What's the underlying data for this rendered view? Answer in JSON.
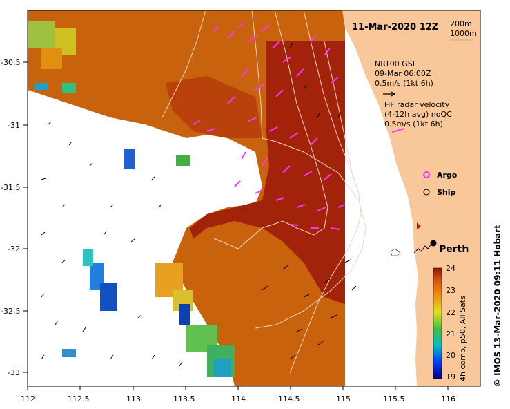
{
  "title": "11-Mar-2020 12Z",
  "depth_labels": [
    "200m",
    "1000m"
  ],
  "legend": {
    "nrt_title": "NRT00 GSL",
    "nrt_date": "09-Mar 06:00Z",
    "nrt_scale": "0.5m/s (1kt 6h)",
    "hf_title": "HF radar velocity",
    "hf_subtitle": "(4-12h avg) noQC",
    "hf_scale": "0.5m/s (1kt 6h)",
    "argo_label": "Argo",
    "ship_label": "Ship"
  },
  "city": "Perth",
  "colorbar": {
    "ticks": [
      "24",
      "23",
      "22",
      "21",
      "20",
      "19"
    ],
    "label": "4h comp, p50, All Sats"
  },
  "credit": "© IMOS 13-Mar-2020 09:11 Hobart",
  "axes": {
    "x_ticks": [
      "112",
      "112.5",
      "113",
      "113.5",
      "114",
      "114.5",
      "115",
      "115.5",
      "116"
    ],
    "y_ticks": [
      "-30.5",
      "-31",
      "-31.5",
      "-32",
      "-32.5",
      "-33"
    ]
  },
  "colors": {
    "warm": "#c25a08",
    "hot": "#a01a00",
    "land": "#f9c89a",
    "argo": "#ff33ff",
    "ship": "#000000"
  }
}
